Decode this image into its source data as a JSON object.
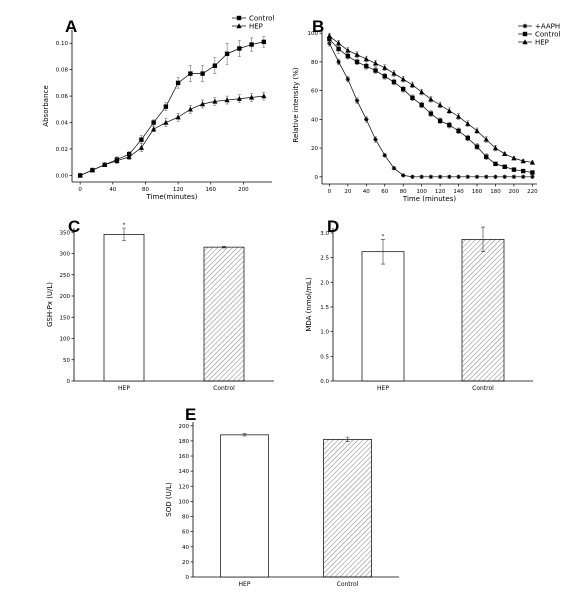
{
  "chart_data": [
    {
      "panel": "A",
      "type": "line",
      "xlabel": "Time(minutes)",
      "ylabel": "Absorbance",
      "xlim": [
        -10,
        235
      ],
      "ylim": [
        -0.005,
        0.11
      ],
      "xticks": [
        0,
        40,
        80,
        120,
        160,
        200
      ],
      "yticks": [
        0.0,
        0.02,
        0.04,
        0.06,
        0.08,
        0.1
      ],
      "yticklabels": [
        "0.00",
        "0.02",
        "0.04",
        "0.06",
        "0.08",
        "0.10"
      ],
      "legend_position": "top-right",
      "x": [
        0,
        15,
        30,
        45,
        60,
        75,
        90,
        105,
        120,
        135,
        150,
        165,
        180,
        195,
        210,
        225
      ],
      "series": [
        {
          "name": "Control",
          "marker": "square",
          "values": [
            0.0,
            0.004,
            0.008,
            0.012,
            0.016,
            0.027,
            0.04,
            0.052,
            0.07,
            0.077,
            0.077,
            0.083,
            0.092,
            0.096,
            0.099,
            0.101
          ],
          "errors": [
            0.0,
            0.001,
            0.001,
            0.002,
            0.002,
            0.003,
            0.002,
            0.003,
            0.004,
            0.006,
            0.006,
            0.006,
            0.008,
            0.006,
            0.005,
            0.004
          ]
        },
        {
          "name": "HEP",
          "marker": "triangle",
          "values": [
            0.0,
            0.004,
            0.008,
            0.011,
            0.014,
            0.021,
            0.035,
            0.04,
            0.044,
            0.05,
            0.054,
            0.056,
            0.057,
            0.058,
            0.059,
            0.06
          ],
          "errors": [
            0.0,
            0.001,
            0.001,
            0.002,
            0.002,
            0.003,
            0.002,
            0.003,
            0.003,
            0.003,
            0.003,
            0.003,
            0.003,
            0.003,
            0.003,
            0.003
          ]
        }
      ]
    },
    {
      "panel": "B",
      "type": "line",
      "xlabel": "Time (minutes)",
      "ylabel": "Relative intensity (%)",
      "xlim": [
        -8,
        225
      ],
      "ylim": [
        -5,
        105
      ],
      "xticks": [
        0,
        20,
        40,
        60,
        80,
        100,
        120,
        140,
        160,
        180,
        200,
        220
      ],
      "yticks": [
        0,
        20,
        40,
        60,
        80,
        100
      ],
      "yticklabels": [
        "0",
        "20",
        "40",
        "60",
        "80",
        "100"
      ],
      "legend_position": "top-right",
      "x": [
        0,
        10,
        20,
        30,
        40,
        50,
        60,
        70,
        80,
        90,
        100,
        110,
        120,
        130,
        140,
        150,
        160,
        170,
        180,
        190,
        200,
        210,
        220
      ],
      "series": [
        {
          "name": "+AAPH",
          "marker": "star",
          "values": [
            93,
            80,
            68,
            53,
            40,
            26,
            15,
            6,
            1,
            0,
            0,
            0,
            0,
            0,
            0,
            0,
            0,
            0,
            0,
            0,
            0,
            0,
            0
          ],
          "errors": [
            2,
            2,
            2,
            2,
            2,
            2,
            1,
            1,
            0,
            0,
            0,
            0,
            0,
            0,
            0,
            0,
            0,
            0,
            0,
            0,
            0,
            0,
            0
          ]
        },
        {
          "name": "Control",
          "marker": "square",
          "values": [
            96,
            89,
            84,
            80,
            77,
            74,
            70,
            66,
            61,
            55,
            50,
            44,
            39,
            36,
            32,
            27,
            21,
            14,
            9,
            7,
            5,
            4,
            3
          ],
          "errors": [
            3,
            3,
            2,
            2,
            2,
            2,
            2,
            2,
            2,
            2,
            2,
            2,
            2,
            2,
            2,
            2,
            2,
            2,
            1,
            1,
            1,
            1,
            1
          ]
        },
        {
          "name": "HEP",
          "marker": "triangle",
          "values": [
            98,
            93,
            88,
            85,
            82,
            79,
            76,
            72,
            68,
            64,
            59,
            54,
            50,
            46,
            42,
            37,
            32,
            26,
            20,
            16,
            13,
            11,
            10
          ],
          "errors": [
            2,
            2,
            2,
            2,
            2,
            2,
            2,
            2,
            2,
            2,
            2,
            2,
            2,
            2,
            2,
            2,
            2,
            2,
            2,
            1,
            1,
            1,
            1
          ]
        }
      ]
    },
    {
      "panel": "C",
      "type": "bar",
      "ylabel": "GSH-Px (U/L)",
      "categories": [
        "HEP",
        "Control"
      ],
      "values": [
        345,
        315
      ],
      "errors": [
        15,
        2
      ],
      "ylim": [
        0,
        360
      ],
      "yticks": [
        0,
        50,
        100,
        150,
        200,
        250,
        300,
        350
      ],
      "yticklabels": [
        "0",
        "50",
        "100",
        "150",
        "200",
        "250",
        "300",
        "350"
      ],
      "annotations": [
        "*",
        ""
      ],
      "fills": [
        "white",
        "hatched"
      ]
    },
    {
      "panel": "D",
      "type": "bar",
      "ylabel": "MDA (nmol/mL)",
      "categories": [
        "HEP",
        "Control"
      ],
      "values": [
        2.62,
        2.87
      ],
      "errors": [
        0.25,
        0.25
      ],
      "ylim": [
        0,
        3.1
      ],
      "yticks": [
        0.0,
        0.5,
        1.0,
        1.5,
        2.0,
        2.5,
        3.0
      ],
      "yticklabels": [
        "0.0",
        "0.5",
        "1.0",
        "1.5",
        "2.0",
        "2.5",
        "3.0"
      ],
      "annotations": [
        "*",
        ""
      ],
      "fills": [
        "white",
        "hatched"
      ]
    },
    {
      "panel": "E",
      "type": "bar",
      "ylabel": "SOD (U/L)",
      "categories": [
        "HEP",
        "Control"
      ],
      "values": [
        188,
        182
      ],
      "errors": [
        1.5,
        3
      ],
      "ylim": [
        0,
        205
      ],
      "yticks": [
        0,
        20,
        40,
        60,
        80,
        100,
        120,
        140,
        160,
        180,
        200
      ],
      "yticklabels": [
        "0",
        "20",
        "40",
        "60",
        "80",
        "100",
        "120",
        "140",
        "160",
        "180",
        "200"
      ],
      "annotations": [
        "",
        ""
      ],
      "fills": [
        "white",
        "hatched"
      ]
    }
  ]
}
